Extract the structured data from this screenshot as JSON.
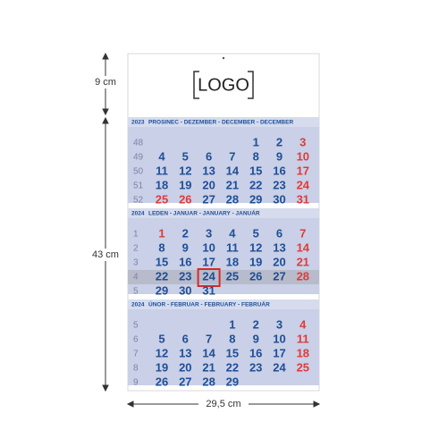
{
  "dimensions": {
    "top_height": "9 cm",
    "height": "43 cm",
    "width": "29,5 cm"
  },
  "logo": "LOGO",
  "months": [
    {
      "year": "2023",
      "title": "PROSINEC - DEZEMBER - DECEMBER - DECEMBER",
      "red": [
        24,
        25,
        26
      ],
      "weeks": [
        {
          "week": 48,
          "days": [
            null,
            null,
            null,
            null,
            1,
            2,
            3
          ]
        },
        {
          "week": 49,
          "days": [
            4,
            5,
            6,
            7,
            8,
            9,
            10
          ]
        },
        {
          "week": 50,
          "days": [
            11,
            12,
            13,
            14,
            15,
            16,
            17
          ]
        },
        {
          "week": 51,
          "days": [
            18,
            19,
            20,
            21,
            22,
            23,
            24
          ]
        },
        {
          "week": 52,
          "days": [
            25,
            26,
            27,
            28,
            29,
            30,
            31
          ]
        }
      ]
    },
    {
      "year": "2024",
      "title": "LEDEN - JANUAR - JANUARY - JANUÁR",
      "red": [
        1
      ],
      "weeks": [
        {
          "week": 1,
          "days": [
            1,
            2,
            3,
            4,
            5,
            6,
            7
          ]
        },
        {
          "week": 2,
          "days": [
            8,
            9,
            10,
            11,
            12,
            13,
            14
          ]
        },
        {
          "week": 3,
          "days": [
            15,
            16,
            17,
            18,
            19,
            20,
            21
          ]
        },
        {
          "week": 4,
          "days": [
            22,
            23,
            24,
            25,
            26,
            27,
            28
          ]
        },
        {
          "week": 5,
          "days": [
            29,
            30,
            31,
            null,
            null,
            null,
            null
          ]
        }
      ]
    },
    {
      "year": "2024",
      "title": "ÚNOR - FEBRUAR - FEBRUARY - FEBRUÁR",
      "red": [],
      "weeks": [
        {
          "week": 5,
          "days": [
            null,
            null,
            null,
            1,
            2,
            3,
            4
          ]
        },
        {
          "week": 6,
          "days": [
            5,
            6,
            7,
            8,
            9,
            10,
            11
          ]
        },
        {
          "week": 7,
          "days": [
            12,
            13,
            14,
            15,
            16,
            17,
            18
          ]
        },
        {
          "week": 8,
          "days": [
            19,
            20,
            21,
            22,
            23,
            24,
            25
          ]
        },
        {
          "week": 9,
          "days": [
            26,
            27,
            28,
            29,
            null,
            null,
            null
          ]
        }
      ]
    }
  ]
}
